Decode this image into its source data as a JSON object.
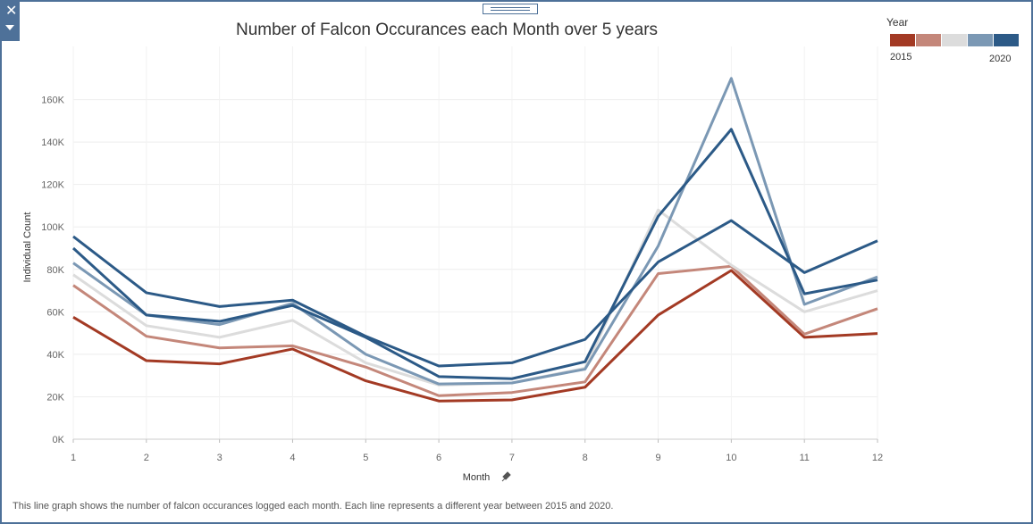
{
  "window": {
    "close_icon": "close-icon",
    "menu_icon": "chevron-down-icon"
  },
  "caption": "This line graph shows the number of falcon occurances logged each month. Each line represents a different year between 2015 and 2020.",
  "legend": {
    "title": "Year",
    "min_label": "2015",
    "max_label": "2020",
    "ramp_colors": [
      "#a33a24",
      "#c4877a",
      "#dcdcdc",
      "#7b98b4",
      "#2c5a87"
    ]
  },
  "chart_data": {
    "type": "line",
    "title": "Number of Falcon Occurances each Month over 5 years",
    "xlabel": "Month",
    "ylabel": "Individual Count",
    "x": [
      1,
      2,
      3,
      4,
      5,
      6,
      7,
      8,
      9,
      10,
      11,
      12
    ],
    "ylim": [
      0,
      170000
    ],
    "yticks": [
      0,
      20000,
      40000,
      60000,
      80000,
      100000,
      120000,
      140000,
      160000
    ],
    "ytick_labels": [
      "0K",
      "20K",
      "40K",
      "60K",
      "80K",
      "100K",
      "120K",
      "140K",
      "160K"
    ],
    "grid": true,
    "legend_position": "top-right",
    "series": [
      {
        "color": "#a33a24",
        "values": [
          57500,
          37000,
          35500,
          42500,
          27500,
          18000,
          18500,
          24500,
          58500,
          79500,
          48000,
          49800
        ]
      },
      {
        "color": "#c4877a",
        "values": [
          72500,
          48500,
          43000,
          44000,
          34000,
          20500,
          22000,
          27000,
          78000,
          81500,
          49500,
          61500
        ]
      },
      {
        "color": "#dcdcdc",
        "values": [
          77500,
          53500,
          48000,
          56000,
          36000,
          25500,
          26500,
          33500,
          108000,
          82000,
          60000,
          70000
        ]
      },
      {
        "color": "#7b98b4",
        "values": [
          83000,
          58500,
          54000,
          64000,
          40000,
          26000,
          26500,
          33000,
          91000,
          170000,
          63500,
          76500
        ]
      },
      {
        "color": "#2c5a87",
        "values": [
          90000,
          58500,
          55500,
          63000,
          48000,
          29500,
          28500,
          36500,
          105000,
          146000,
          68500,
          75000
        ]
      },
      {
        "color": "#2c5a87",
        "values": [
          95500,
          69000,
          62500,
          65500,
          48500,
          34500,
          36000,
          47000,
          83500,
          103000,
          78500,
          93500
        ]
      }
    ]
  }
}
